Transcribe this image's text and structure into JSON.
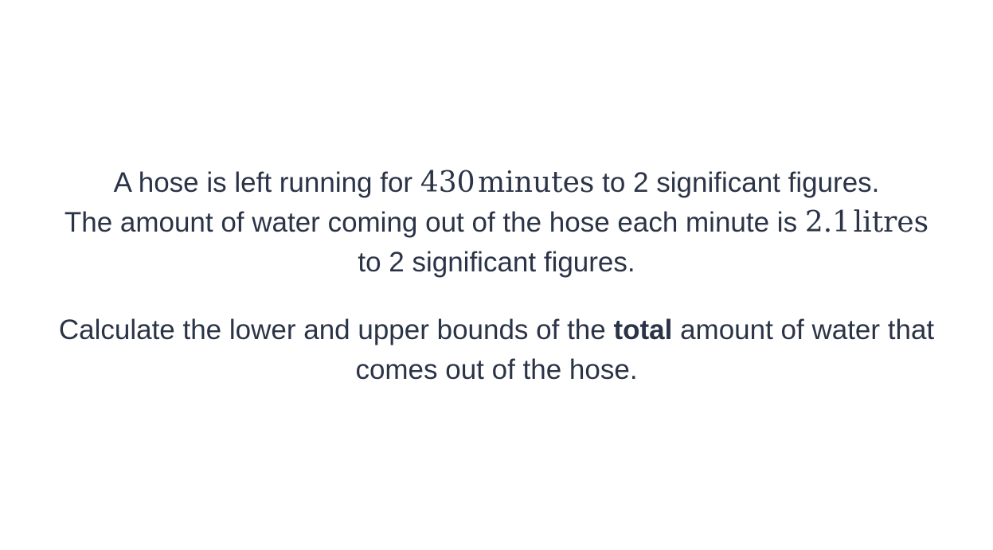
{
  "question": {
    "line1": {
      "pre": "A hose is left running for ",
      "value": "430",
      "unit": "minutes",
      "post": " to 2 significant figures."
    },
    "line2": {
      "pre": "The amount of water coming out of the hose each minute is ",
      "value": "2.1",
      "unit": "litres"
    },
    "line3": "to 2 significant figures.",
    "line4": {
      "pre": "Calculate the lower and upper bounds of the ",
      "bold": "total",
      "post": " amount of water that"
    },
    "line5": "comes out of the hose."
  }
}
